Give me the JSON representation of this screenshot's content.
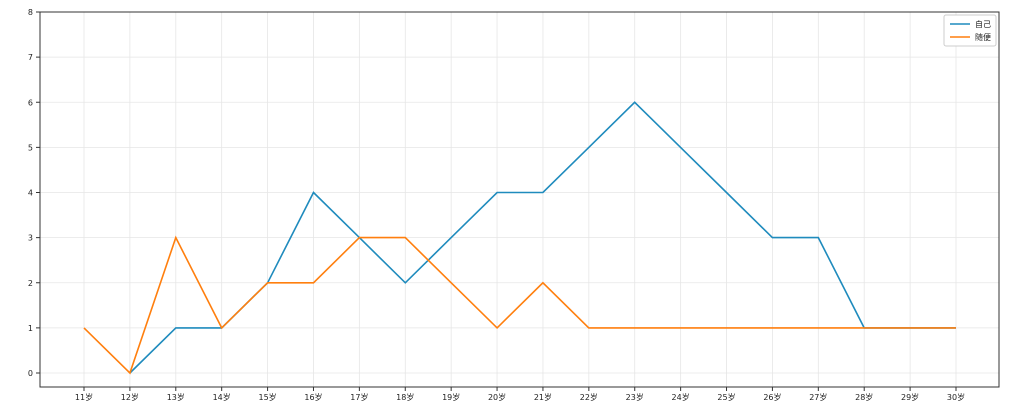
{
  "chart_data": {
    "type": "line",
    "categories": [
      "11岁",
      "12岁",
      "13岁",
      "14岁",
      "15岁",
      "16岁",
      "17岁",
      "18岁",
      "19岁",
      "20岁",
      "21岁",
      "22岁",
      "23岁",
      "24岁",
      "25岁",
      "26岁",
      "27岁",
      "28岁",
      "29岁",
      "30岁"
    ],
    "series": [
      {
        "name": "自己",
        "color": "#1f8bbd",
        "values": [
          null,
          0,
          1,
          1,
          2,
          4,
          3,
          2,
          3,
          4,
          4,
          5,
          6,
          5,
          4,
          3,
          3,
          1,
          1,
          1
        ]
      },
      {
        "name": "随便",
        "color": "#ff7f0e",
        "values": [
          1,
          0,
          3,
          1,
          2,
          2,
          3,
          3,
          2,
          1,
          2,
          1,
          1,
          1,
          1,
          1,
          1,
          1,
          1,
          1
        ]
      }
    ],
    "ylim": [
      0,
      8
    ],
    "yticks": [
      0,
      1,
      2,
      3,
      4,
      5,
      6,
      7,
      8
    ],
    "grid": true,
    "legend_position": "top-right",
    "title": "",
    "xlabel": "",
    "ylabel": ""
  }
}
